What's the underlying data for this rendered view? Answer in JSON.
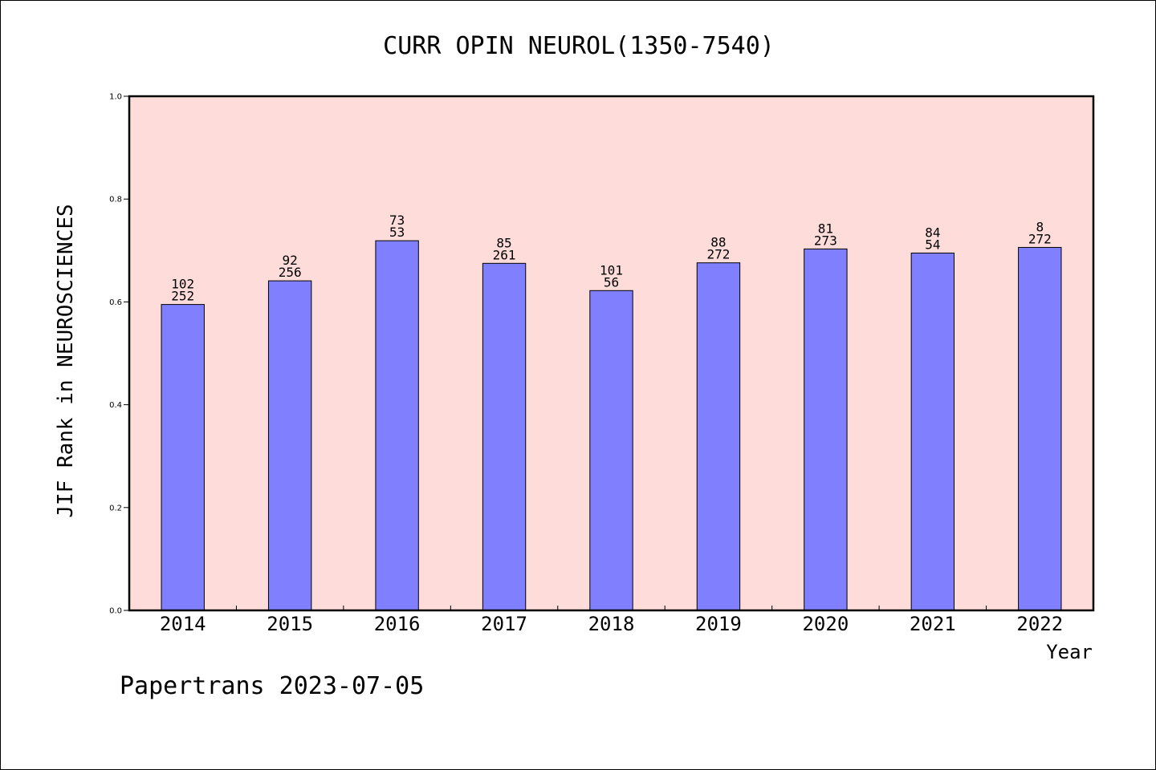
{
  "chart_data": {
    "type": "bar",
    "title": "CURR OPIN NEUROL(1350-7540)",
    "xlabel": "Year",
    "ylabel": "JIF Rank in NEUROSCIENCES",
    "ylim": [
      0,
      1.0
    ],
    "yticks": [
      "0.0",
      "0.2",
      "0.4",
      "0.6",
      "0.8",
      "1.0"
    ],
    "categories": [
      "2014",
      "2015",
      "2016",
      "2017",
      "2018",
      "2019",
      "2020",
      "2021",
      "2022"
    ],
    "values": [
      0.595,
      0.641,
      0.719,
      0.675,
      0.622,
      0.676,
      0.703,
      0.695,
      0.706
    ],
    "bar_labels": [
      [
        "102",
        "252"
      ],
      [
        "92",
        "256"
      ],
      [
        "73",
        "53"
      ],
      [
        "85",
        "261"
      ],
      [
        "101",
        "56"
      ],
      [
        "88",
        "272"
      ],
      [
        "81",
        "273"
      ],
      [
        "84",
        "54"
      ],
      [
        "8",
        "272"
      ]
    ],
    "grid": false,
    "colors": {
      "bar": "#8080ff",
      "plot_background": "#fddcda",
      "axis": "#000000"
    }
  },
  "footer": "Papertrans 2023-07-05"
}
